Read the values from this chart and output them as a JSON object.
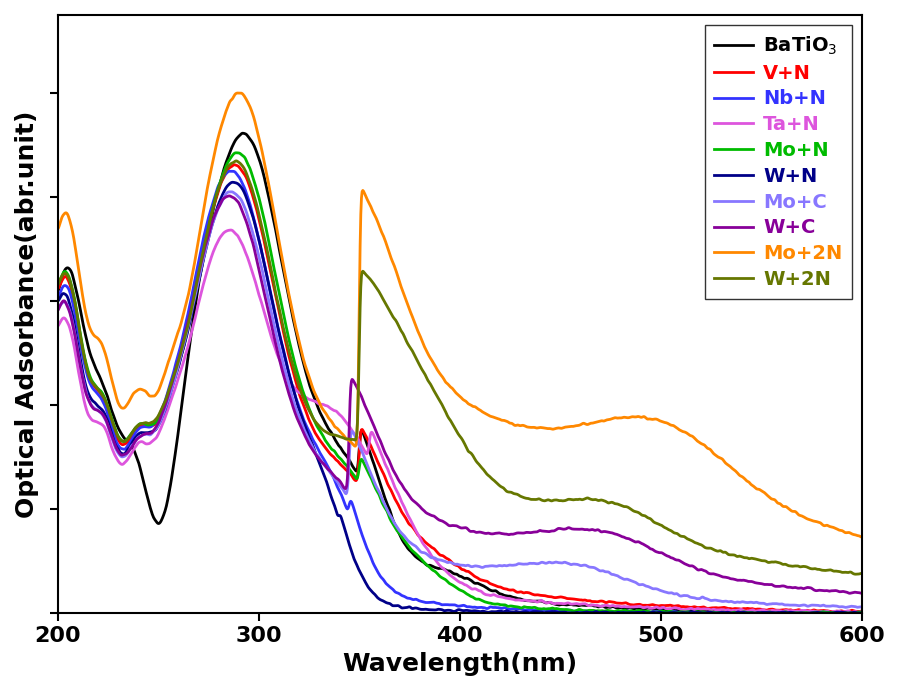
{
  "xlabel": "Wavelength(nm)",
  "ylabel": "Optical Adsorbance(abr.unit)",
  "xlim": [
    200,
    600
  ],
  "ylim": [
    0,
    1.15
  ],
  "xticklabels": [
    "200",
    "300",
    "400",
    "500",
    "600"
  ],
  "xticks": [
    200,
    300,
    400,
    500,
    600
  ],
  "series": [
    {
      "label": "BaTiO$_3$",
      "color": "#000000",
      "lw": 2.0
    },
    {
      "label": "V+N",
      "color": "#FF0000",
      "lw": 2.0
    },
    {
      "label": "Nb+N",
      "color": "#3333FF",
      "lw": 2.0
    },
    {
      "label": "Ta+N",
      "color": "#DD55DD",
      "lw": 2.0
    },
    {
      "label": "Mo+N",
      "color": "#00BB00",
      "lw": 2.0
    },
    {
      "label": "W+N",
      "color": "#000088",
      "lw": 2.0
    },
    {
      "label": "Mo+C",
      "color": "#8877FF",
      "lw": 2.0
    },
    {
      "label": "W+C",
      "color": "#880099",
      "lw": 2.0
    },
    {
      "label": "Mo+2N",
      "color": "#FF8800",
      "lw": 2.0
    },
    {
      "label": "W+2N",
      "color": "#667700",
      "lw": 2.0
    }
  ],
  "legend_fontsize": 14,
  "axis_label_fontsize": 18,
  "tick_fontsize": 16,
  "background_color": "#ffffff"
}
